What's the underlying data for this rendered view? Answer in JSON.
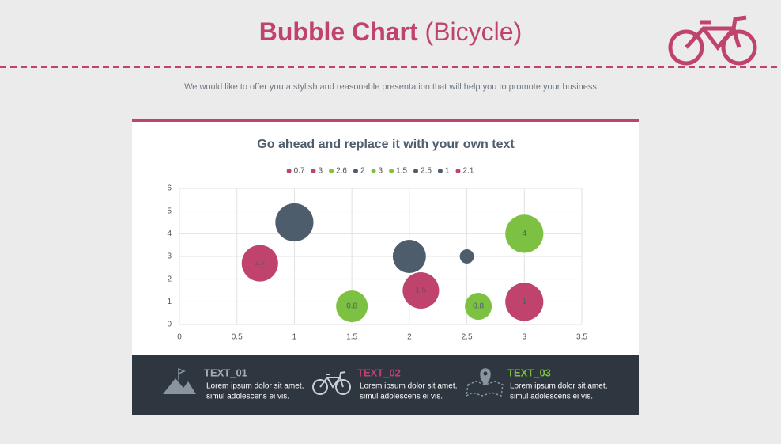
{
  "header": {
    "title_bold": "Bubble Chart",
    "title_rest": "(Bicycle)",
    "subtitle": "We would like to offer you a stylish and reasonable presentation that will help you to promote your business"
  },
  "chart_data": {
    "type": "bubble",
    "title": "Go ahead and replace it with your own text",
    "xlim": [
      0,
      3.5
    ],
    "xticks": [
      0,
      0.5,
      1,
      1.5,
      2,
      2.5,
      3,
      3.5
    ],
    "ylim": [
      0,
      6
    ],
    "yticks": [
      0,
      1,
      2,
      3,
      4,
      5,
      6
    ],
    "grid": true,
    "legend": "top",
    "series": [
      {
        "name": "0.7",
        "color": "#c0436e",
        "x": [
          0.7
        ],
        "values": [
          2.7
        ],
        "sizes": [
          5.3
        ]
      },
      {
        "name": "3",
        "color": "#c0436e",
        "x": [
          3
        ],
        "values": [
          1
        ],
        "sizes": [
          5.8
        ]
      },
      {
        "name": "2.6",
        "color": "#7dc142",
        "x": [
          2.6
        ],
        "values": [
          0.8
        ],
        "sizes": [
          2.9
        ]
      },
      {
        "name": "2",
        "color": "#4e5d6c",
        "x": [
          2
        ],
        "values": [
          3
        ],
        "sizes": [
          4.4
        ]
      },
      {
        "name": "3",
        "color": "#7dc142",
        "x": [
          3
        ],
        "values": [
          4
        ],
        "sizes": [
          5.8
        ]
      },
      {
        "name": "1.5",
        "color": "#7dc142",
        "x": [
          1.5
        ],
        "values": [
          0.8
        ],
        "sizes": [
          4
        ]
      },
      {
        "name": "2.5",
        "color": "#4e5d6c",
        "x": [
          2.5
        ],
        "values": [
          3
        ],
        "sizes": [
          0.8
        ]
      },
      {
        "name": "1",
        "color": "#4e5d6c",
        "x": [
          1
        ],
        "values": [
          4.5
        ],
        "sizes": [
          5.8
        ]
      },
      {
        "name": "2.1",
        "color": "#c0436e",
        "x": [
          2.1
        ],
        "values": [
          1.5
        ],
        "sizes": [
          5.3
        ]
      }
    ]
  },
  "footer": {
    "items": [
      {
        "title": "TEXT_01",
        "lines": [
          "Lorem ipsum dolor sit amet,",
          "simul adolescens ei vis."
        ]
      },
      {
        "title": "TEXT_02",
        "lines": [
          "Lorem ipsum dolor sit amet,",
          "simul adolescens ei vis."
        ]
      },
      {
        "title": "TEXT_03",
        "lines": [
          "Lorem ipsum dolor sit amet,",
          "simul adolescens ei vis."
        ]
      }
    ]
  }
}
